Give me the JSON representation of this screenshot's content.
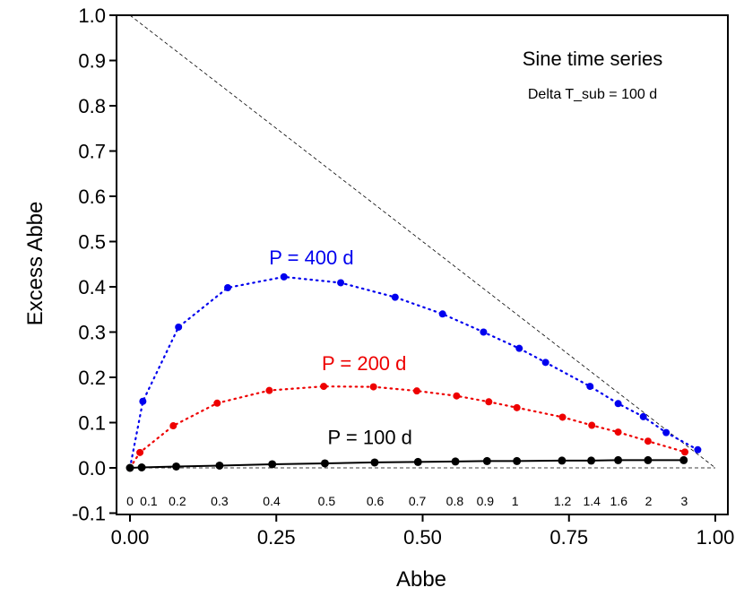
{
  "chart_data": {
    "type": "scatter",
    "title": "Sine time series",
    "subtitle": "Delta T_sub = 100 d",
    "xlabel": "Abbe",
    "ylabel": "Excess Abbe",
    "xlim": [
      0.0,
      1.0
    ],
    "ylim": [
      -0.1,
      1.0
    ],
    "x_ticks": [
      0.0,
      0.25,
      0.5,
      0.75,
      1.0
    ],
    "x_tick_labels": [
      "0.00",
      "0.25",
      "0.50",
      "0.75",
      "1.00"
    ],
    "y_ticks": [
      -0.1,
      0.0,
      0.1,
      0.2,
      0.3,
      0.4,
      0.5,
      0.6,
      0.7,
      0.8,
      0.9,
      1.0
    ],
    "y_tick_labels": [
      "-0.1",
      "0.0",
      "0.1",
      "0.2",
      "0.3",
      "0.4",
      "0.5",
      "0.6",
      "0.7",
      "0.8",
      "0.9",
      "1.0"
    ],
    "grid": false,
    "reference_lines": [
      {
        "name": "upper-bound",
        "x": [
          0.0,
          1.0
        ],
        "y": [
          1.0,
          0.0
        ],
        "style": "dashed"
      },
      {
        "name": "zero-line",
        "x": [
          0.0,
          1.0
        ],
        "y": [
          0.0,
          0.0
        ],
        "style": "dashed"
      }
    ],
    "parameter_labels": [
      {
        "text": "0",
        "x": 0.0
      },
      {
        "text": "0.1",
        "x": 0.032
      },
      {
        "text": "0.2",
        "x": 0.081
      },
      {
        "text": "0.3",
        "x": 0.153
      },
      {
        "text": "0.4",
        "x": 0.242
      },
      {
        "text": "0.5",
        "x": 0.336
      },
      {
        "text": "0.6",
        "x": 0.419
      },
      {
        "text": "0.7",
        "x": 0.491
      },
      {
        "text": "0.8",
        "x": 0.555
      },
      {
        "text": "0.9",
        "x": 0.607
      },
      {
        "text": "1",
        "x": 0.658
      },
      {
        "text": "1.2",
        "x": 0.739
      },
      {
        "text": "1.4",
        "x": 0.789
      },
      {
        "text": "1.6",
        "x": 0.835
      },
      {
        "text": "2",
        "x": 0.886
      },
      {
        "text": "3",
        "x": 0.947
      }
    ],
    "series": [
      {
        "name": "P = 400 d",
        "color": "#0000ee",
        "line_style": "dotted",
        "label_pos": [
          0.31,
          0.45
        ],
        "x": [
          0.0,
          0.022,
          0.083,
          0.167,
          0.263,
          0.36,
          0.453,
          0.534,
          0.604,
          0.665,
          0.71,
          0.786,
          0.834,
          0.877,
          0.916,
          0.97
        ],
        "y": [
          0.0,
          0.147,
          0.311,
          0.398,
          0.422,
          0.409,
          0.377,
          0.34,
          0.3,
          0.264,
          0.233,
          0.18,
          0.142,
          0.113,
          0.078,
          0.04
        ]
      },
      {
        "name": "P = 200 d",
        "color": "#ee0000",
        "line_style": "dotted",
        "label_pos": [
          0.4,
          0.216
        ],
        "x": [
          0.0,
          0.017,
          0.074,
          0.149,
          0.238,
          0.331,
          0.416,
          0.49,
          0.558,
          0.613,
          0.661,
          0.739,
          0.789,
          0.834,
          0.885,
          0.948
        ],
        "y": [
          0.0,
          0.034,
          0.093,
          0.143,
          0.171,
          0.18,
          0.179,
          0.17,
          0.159,
          0.146,
          0.133,
          0.112,
          0.094,
          0.079,
          0.059,
          0.035
        ]
      },
      {
        "name": "P = 100 d",
        "color": "#000000",
        "line_style": "solid",
        "label_pos": [
          0.41,
          0.052
        ],
        "x": [
          0.0,
          0.02,
          0.079,
          0.153,
          0.243,
          0.333,
          0.418,
          0.492,
          0.556,
          0.61,
          0.661,
          0.738,
          0.788,
          0.834,
          0.885,
          0.946
        ],
        "y": [
          0.0,
          0.001,
          0.003,
          0.005,
          0.008,
          0.01,
          0.012,
          0.013,
          0.014,
          0.015,
          0.015,
          0.016,
          0.016,
          0.017,
          0.017,
          0.017
        ]
      }
    ]
  }
}
